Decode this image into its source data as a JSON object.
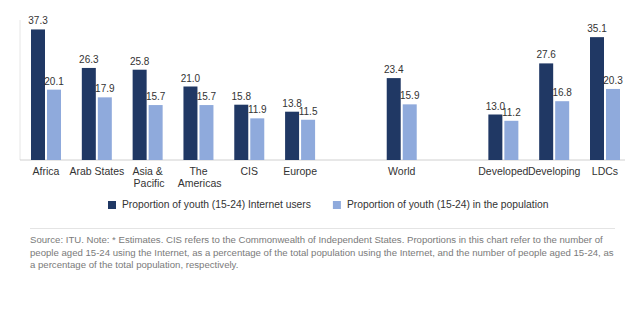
{
  "chart_data": {
    "type": "bar",
    "categories": [
      "Africa",
      "Arab States",
      "Asia & Pacific",
      "The Americas",
      "CIS",
      "Europe",
      null,
      "World",
      null,
      "Developed",
      "Developing",
      "LDCs"
    ],
    "series": [
      {
        "name": "Proportion of youth (15-24) Internet users",
        "color": "#203864",
        "values": [
          37.3,
          26.3,
          25.8,
          21.0,
          15.8,
          13.8,
          null,
          23.4,
          null,
          13.0,
          27.6,
          35.1
        ],
        "value_labels": [
          "37.3",
          "26.3",
          "25.8",
          "21.0",
          "15.8",
          "13.8",
          null,
          "23.4",
          null,
          "13.0",
          "27.6",
          "35.1"
        ]
      },
      {
        "name": "Proportion of youth (15-24) in the population",
        "color": "#8faadc",
        "values": [
          20.1,
          17.9,
          15.7,
          15.7,
          11.9,
          11.5,
          null,
          15.9,
          null,
          11.2,
          16.8,
          20.3
        ],
        "value_labels": [
          "20.1",
          "17.9",
          "15.7",
          "15.7",
          "11.9",
          "11.5",
          null,
          "15.9",
          null,
          "11.2",
          "16.8",
          "20.3"
        ]
      }
    ],
    "ylim": [
      0,
      40
    ],
    "grid": false,
    "data_labels": true,
    "tick_labels": "x",
    "legend": "bottom",
    "annotations": [
      "Source: ITU. Note: * Estimates. CIS refers to the Commonwealth of Independent States. Proportions in this chart refer to the number of people aged 15-24 using the Internet, as a percentage of the total population using the Internet, and the number of people aged 15-24, as a percentage of the total population, respectively."
    ]
  }
}
